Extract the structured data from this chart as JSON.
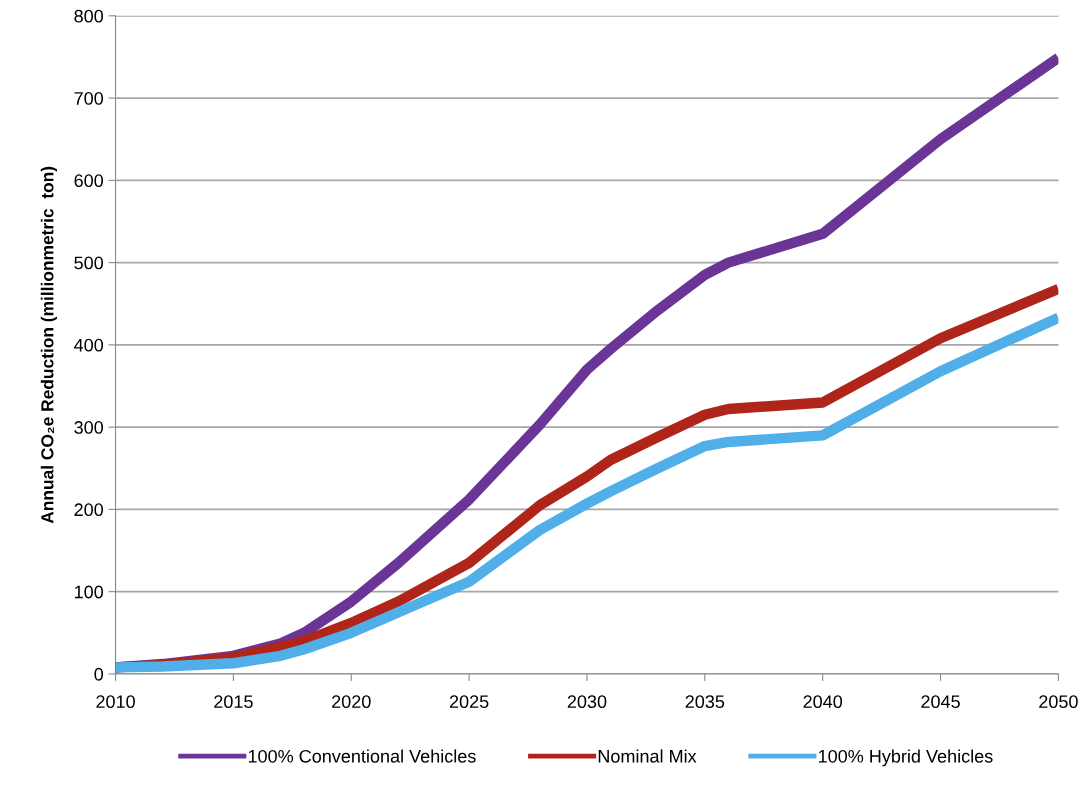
{
  "chart_data": {
    "type": "line",
    "ylabel": "Annual CO₂e Reduction (millionmetric  ton)",
    "x": [
      2010,
      2012,
      2015,
      2017,
      2018,
      2020,
      2022,
      2025,
      2028,
      2030,
      2031,
      2033,
      2035,
      2036,
      2040,
      2045,
      2050
    ],
    "series": [
      {
        "name": "100% Conventional Vehicles",
        "color": "#6a3597",
        "values": [
          8,
          12,
          22,
          37,
          50,
          88,
          135,
          212,
          303,
          370,
          395,
          442,
          485,
          500,
          535,
          650,
          749
        ]
      },
      {
        "name": "Nominal Mix",
        "color": "#b0251a",
        "values": [
          8,
          11,
          20,
          33,
          40,
          62,
          88,
          135,
          205,
          240,
          260,
          288,
          315,
          322,
          330,
          408,
          468
        ]
      },
      {
        "name": "100% Hybrid Vehicles",
        "color": "#50aee8",
        "values": [
          8,
          9,
          13,
          22,
          30,
          50,
          75,
          112,
          175,
          207,
          222,
          250,
          277,
          282,
          290,
          368,
          433
        ]
      }
    ],
    "xlim": [
      2010,
      2050
    ],
    "xticks": [
      2010,
      2015,
      2020,
      2025,
      2030,
      2035,
      2040,
      2045,
      2050
    ],
    "ylim": [
      0,
      800
    ],
    "yticks": [
      0,
      100,
      200,
      300,
      400,
      500,
      600,
      700,
      800
    ],
    "grid": "y",
    "legend": "bottom",
    "marker": "none",
    "line_style": "solid"
  }
}
